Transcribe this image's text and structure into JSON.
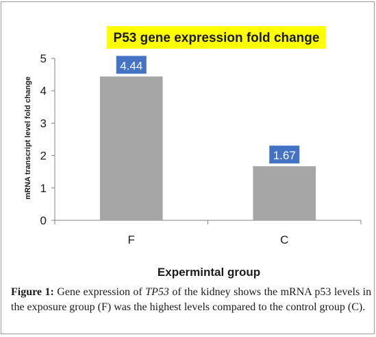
{
  "chart_data": {
    "type": "bar",
    "title": "P53 gene expression fold change",
    "xlabel": "Expermintal group",
    "ylabel": "mRNA transcript level fold change",
    "categories": [
      "F",
      "C"
    ],
    "values": [
      4.44,
      1.67
    ],
    "data_labels": [
      "4.44",
      "1.67"
    ],
    "ylim": [
      0,
      5
    ],
    "yticks": [
      "0",
      "1",
      "2",
      "3",
      "4",
      "5"
    ],
    "grid": false,
    "legend": "none"
  },
  "colors": {
    "bar": "#a6a6a6",
    "data_label_bg": "#4472c4",
    "title_bg": "#ffff00",
    "axis": "#808080"
  },
  "caption": {
    "label": "Figure 1:",
    "text_before": "Gene expression of",
    "gene": "TP53",
    "text_after": "of the kidney shows the mRNA p53 levels in the exposure group (F) was the highest levels compared to the control group (C)."
  }
}
